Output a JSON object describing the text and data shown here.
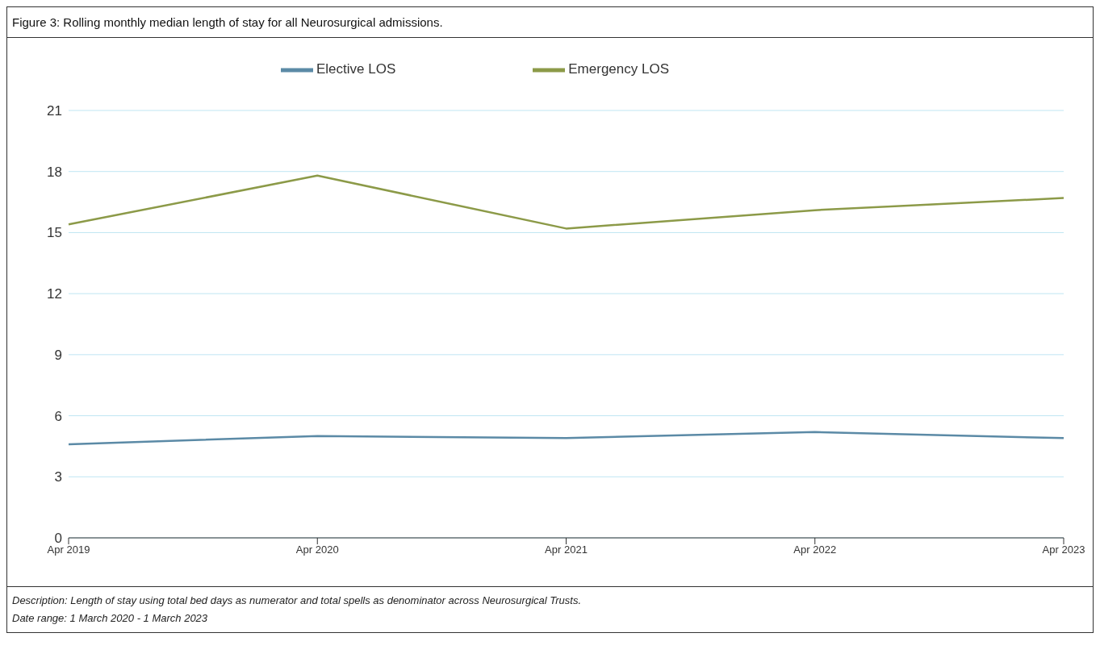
{
  "chart_data": {
    "type": "line",
    "title": "Figure 3: Rolling monthly median length of stay for all Neurosurgical admissions.",
    "categories": [
      "Apr 2019",
      "Apr 2020",
      "Apr 2021",
      "Apr 2022",
      "Apr 2023"
    ],
    "series": [
      {
        "name": "Elective LOS",
        "color": "#5b8aa6",
        "values": [
          4.6,
          5.0,
          4.9,
          5.2,
          4.9
        ]
      },
      {
        "name": "Emergency LOS",
        "color": "#8c9a48",
        "values": [
          15.4,
          17.8,
          15.2,
          16.1,
          16.7
        ]
      }
    ],
    "ylim": [
      0,
      21
    ],
    "yticks": [
      0,
      3,
      6,
      9,
      12,
      15,
      18,
      21
    ],
    "grid": "y",
    "legend": "top",
    "marker": "none",
    "line_style": "solid",
    "annotations": [
      "Description: Length of stay using total bed days as numerator and total spells as denominator across Neurosurgical Trusts.",
      "Date range: 1 March 2020 - 1 March 2023"
    ]
  }
}
